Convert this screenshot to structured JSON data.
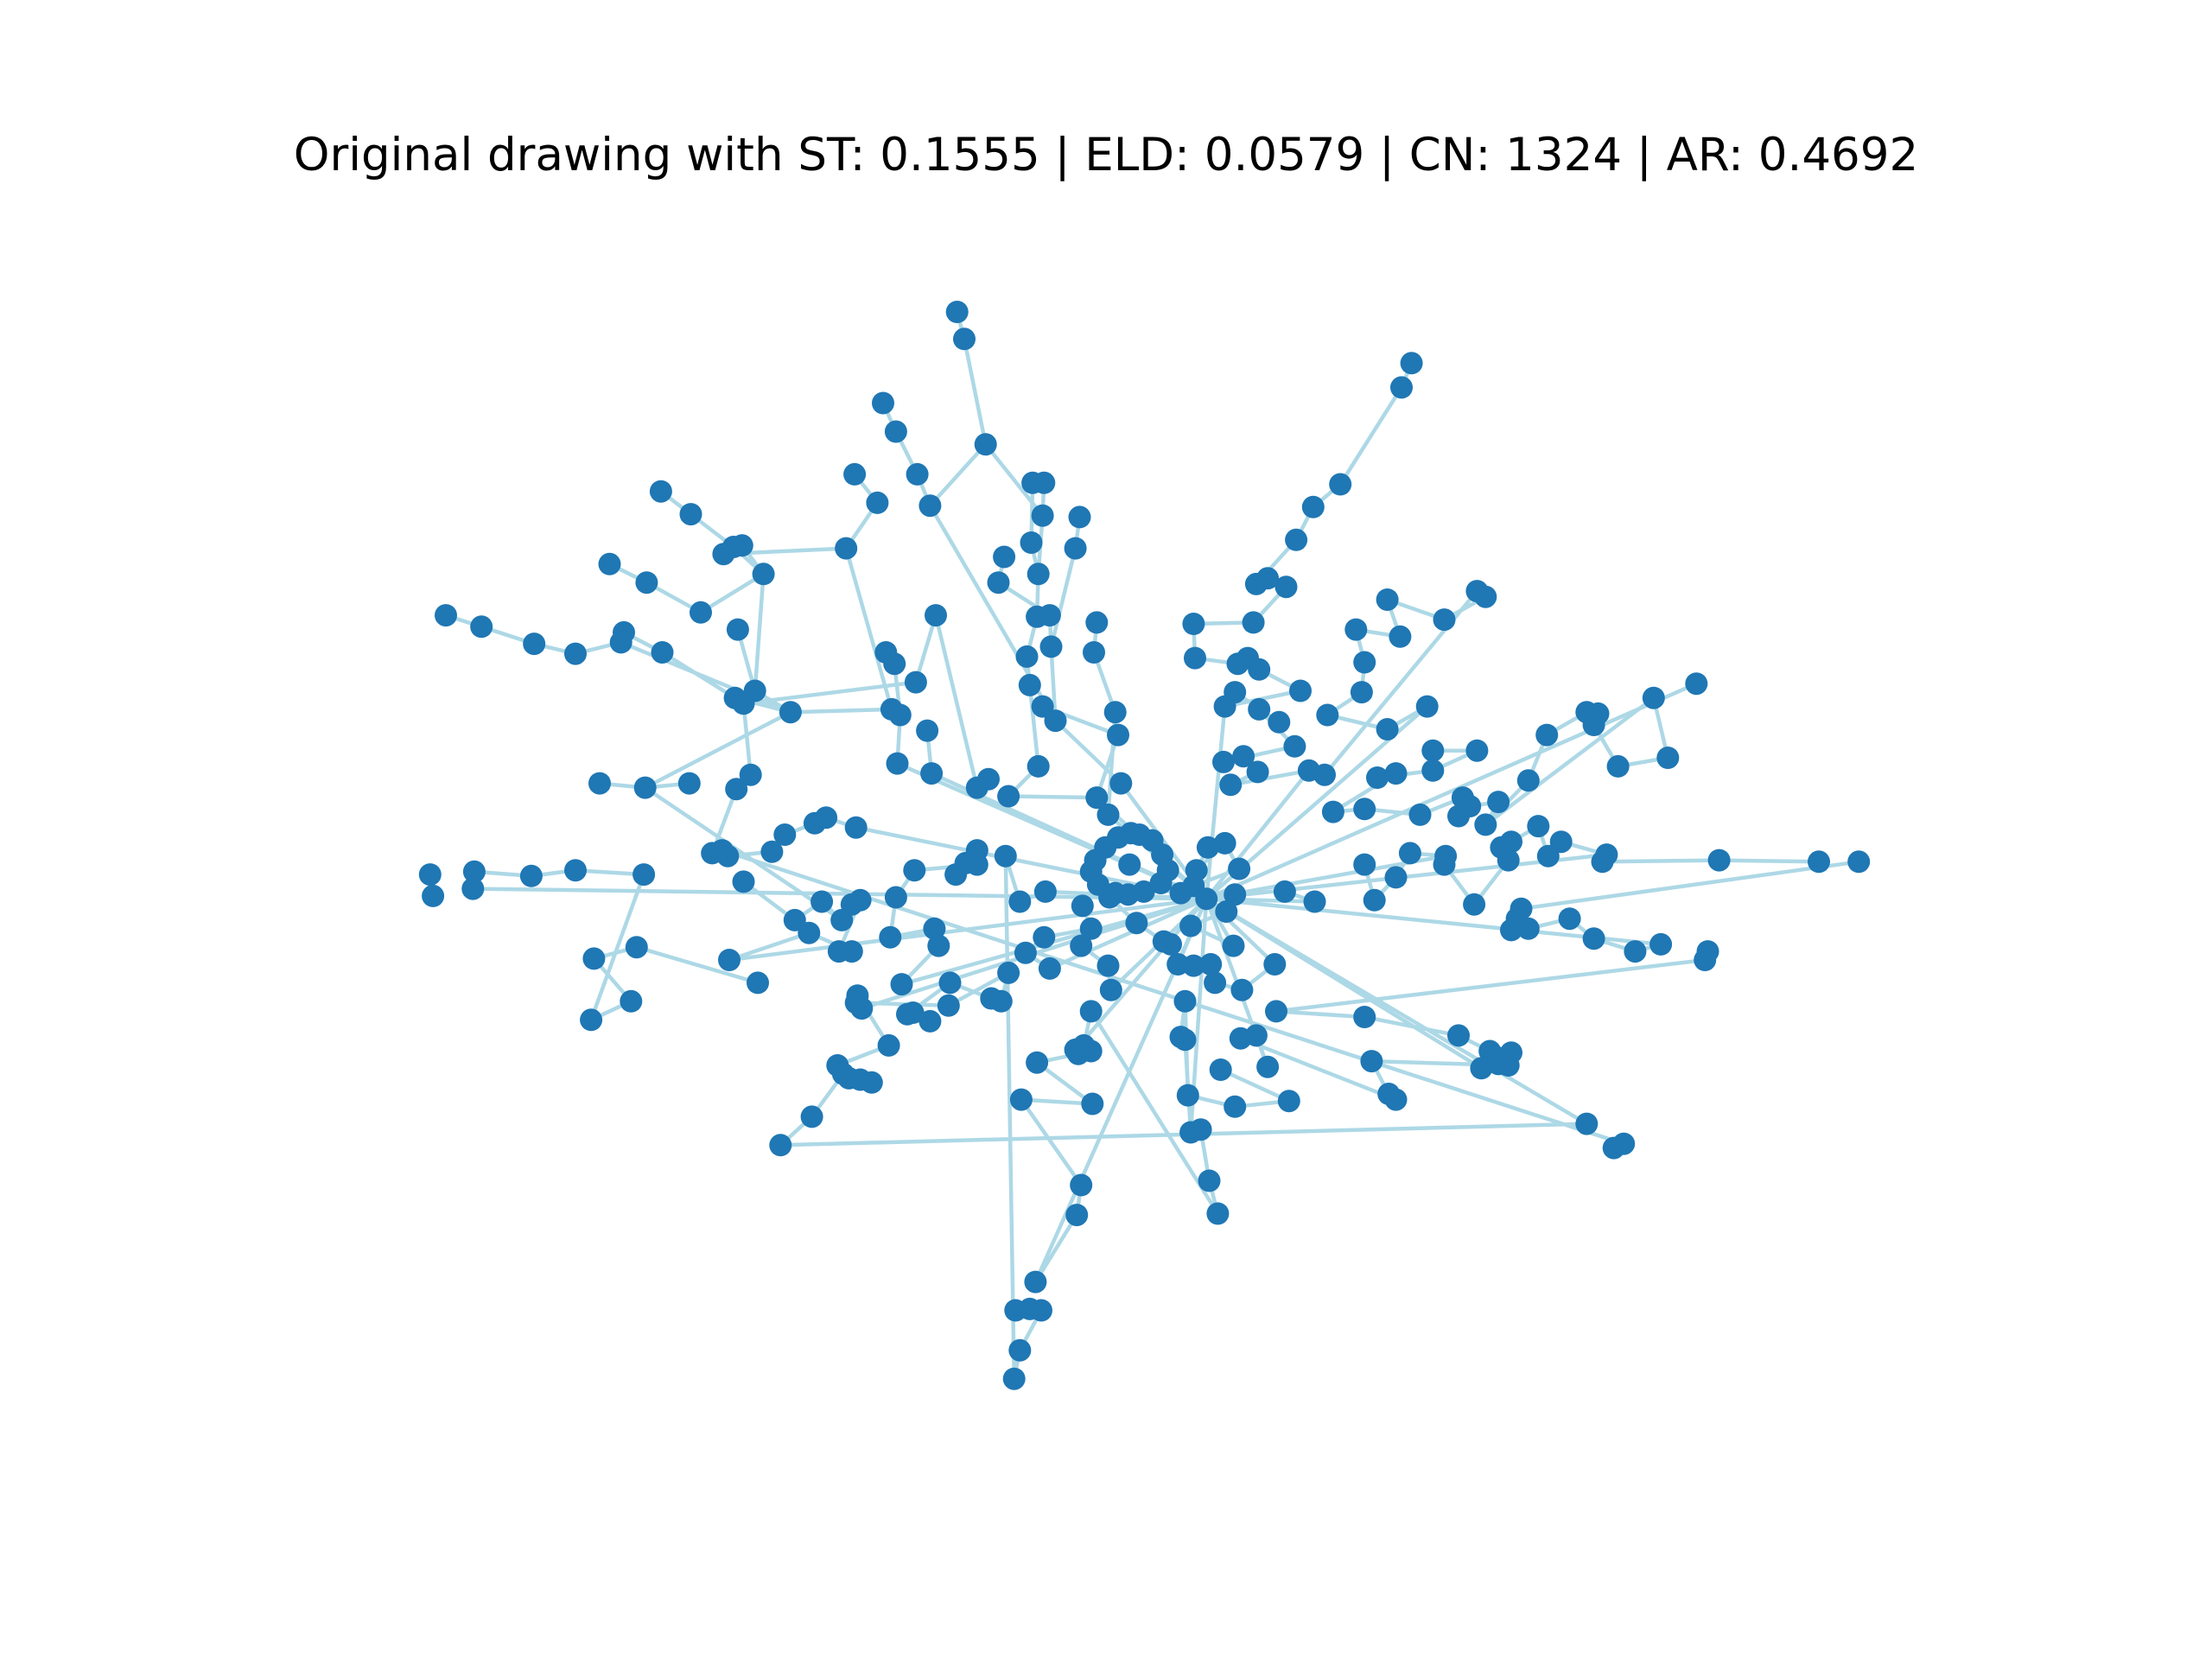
{
  "figure": {
    "title": "Original drawing with ST: 0.1555 | ELD: 0.0579 | CN: 1324 | AR: 0.4692"
  },
  "colors": {
    "edge": "#add8e6",
    "node": "#1f77b4",
    "background": "#ffffff"
  }
}
